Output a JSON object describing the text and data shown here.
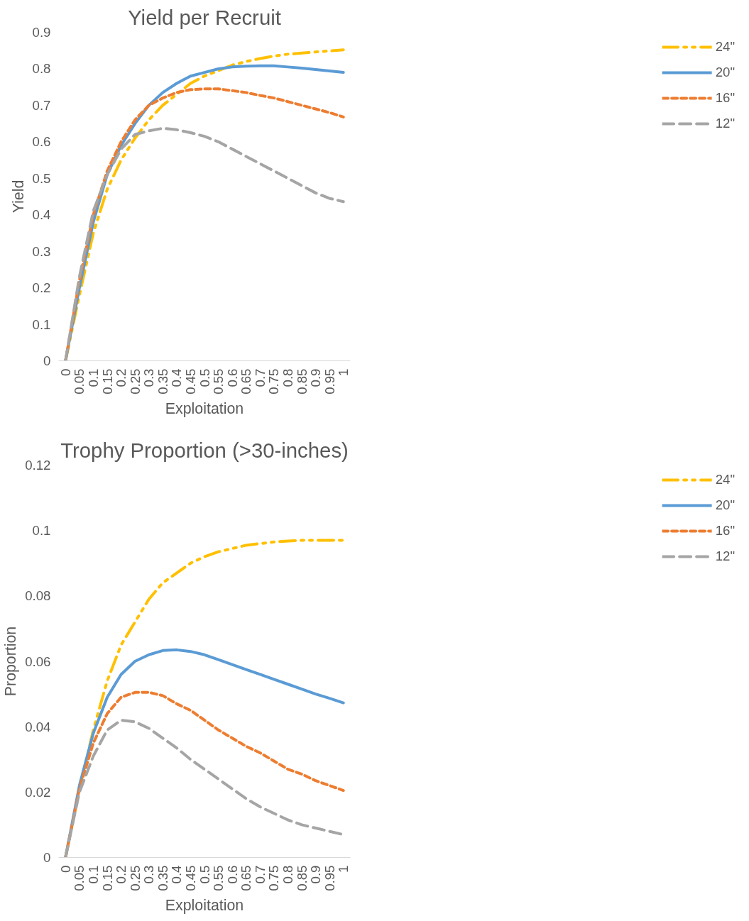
{
  "chart_data": [
    {
      "type": "line",
      "title": "Yield per Recruit",
      "xlabel": "Exploitation",
      "ylabel": "Yield",
      "categories": [
        "0",
        "0.05",
        "0.1",
        "0.15",
        "0.2",
        "0.25",
        "0.3",
        "0.35",
        "0.4",
        "0.45",
        "0.5",
        "0.55",
        "0.6",
        "0.65",
        "0.7",
        "0.75",
        "0.8",
        "0.85",
        "0.9",
        "0.95",
        "1"
      ],
      "ylim": [
        0,
        0.9
      ],
      "yticks": [
        0,
        0.1,
        0.2,
        0.3,
        0.4,
        0.5,
        0.6,
        0.7,
        0.8,
        0.9
      ],
      "legend": "right",
      "series": [
        {
          "name": "24\"",
          "color": "#ffc000",
          "line_style": "dashdot",
          "values": [
            0,
            0.18,
            0.35,
            0.47,
            0.55,
            0.61,
            0.66,
            0.7,
            0.73,
            0.76,
            0.78,
            0.795,
            0.81,
            0.82,
            0.828,
            0.835,
            0.84,
            0.843,
            0.846,
            0.849,
            0.852
          ]
        },
        {
          "name": "20\"",
          "color": "#5b9bd5",
          "line_style": "solid",
          "values": [
            0,
            0.2,
            0.38,
            0.51,
            0.59,
            0.65,
            0.7,
            0.735,
            0.76,
            0.78,
            0.79,
            0.8,
            0.805,
            0.807,
            0.808,
            0.808,
            0.805,
            0.802,
            0.798,
            0.794,
            0.79
          ]
        },
        {
          "name": "16\"",
          "color": "#ed7d31",
          "line_style": "dotted",
          "values": [
            0,
            0.22,
            0.4,
            0.52,
            0.6,
            0.66,
            0.7,
            0.72,
            0.735,
            0.743,
            0.745,
            0.745,
            0.74,
            0.735,
            0.727,
            0.72,
            0.71,
            0.7,
            0.69,
            0.68,
            0.668
          ]
        },
        {
          "name": "12\"",
          "color": "#a5a5a5",
          "line_style": "dashed",
          "values": [
            0,
            0.23,
            0.41,
            0.51,
            0.58,
            0.62,
            0.63,
            0.637,
            0.633,
            0.625,
            0.615,
            0.6,
            0.58,
            0.56,
            0.54,
            0.52,
            0.5,
            0.48,
            0.46,
            0.445,
            0.436
          ]
        }
      ]
    },
    {
      "type": "line",
      "title": "Trophy Proportion (>30-inches)",
      "xlabel": "Exploitation",
      "ylabel": "Proportion",
      "categories": [
        "0",
        "0.05",
        "0.1",
        "0.15",
        "0.2",
        "0.25",
        "0.3",
        "0.35",
        "0.4",
        "0.45",
        "0.5",
        "0.55",
        "0.6",
        "0.65",
        "0.7",
        "0.75",
        "0.8",
        "0.85",
        "0.9",
        "0.95",
        "1"
      ],
      "ylim": [
        0,
        0.12
      ],
      "yticks": [
        0,
        0.02,
        0.04,
        0.06,
        0.08,
        0.1,
        0.12
      ],
      "legend": "right",
      "series": [
        {
          "name": "24\"",
          "color": "#ffc000",
          "line_style": "dashdot",
          "values": [
            0,
            0.021,
            0.039,
            0.054,
            0.065,
            0.072,
            0.079,
            0.084,
            0.087,
            0.09,
            0.092,
            0.0935,
            0.0945,
            0.0955,
            0.096,
            0.0965,
            0.0968,
            0.097,
            0.097,
            0.097,
            0.097
          ]
        },
        {
          "name": "20\"",
          "color": "#5b9bd5",
          "line_style": "solid",
          "values": [
            0,
            0.022,
            0.038,
            0.049,
            0.056,
            0.06,
            0.062,
            0.0633,
            0.0635,
            0.063,
            0.062,
            0.0605,
            0.059,
            0.0575,
            0.056,
            0.0545,
            0.053,
            0.0515,
            0.05,
            0.0487,
            0.0473
          ]
        },
        {
          "name": "16\"",
          "color": "#ed7d31",
          "line_style": "dotted",
          "values": [
            0,
            0.021,
            0.035,
            0.044,
            0.049,
            0.0505,
            0.0505,
            0.0495,
            0.047,
            0.045,
            0.042,
            0.039,
            0.0365,
            0.034,
            0.032,
            0.0295,
            0.027,
            0.0255,
            0.0235,
            0.022,
            0.0205
          ]
        },
        {
          "name": "12\"",
          "color": "#a5a5a5",
          "line_style": "dashed",
          "values": [
            0,
            0.02,
            0.031,
            0.039,
            0.042,
            0.0415,
            0.0395,
            0.0365,
            0.0335,
            0.03,
            0.027,
            0.024,
            0.021,
            0.018,
            0.0155,
            0.0135,
            0.0115,
            0.01,
            0.009,
            0.008,
            0.007
          ]
        }
      ]
    }
  ]
}
